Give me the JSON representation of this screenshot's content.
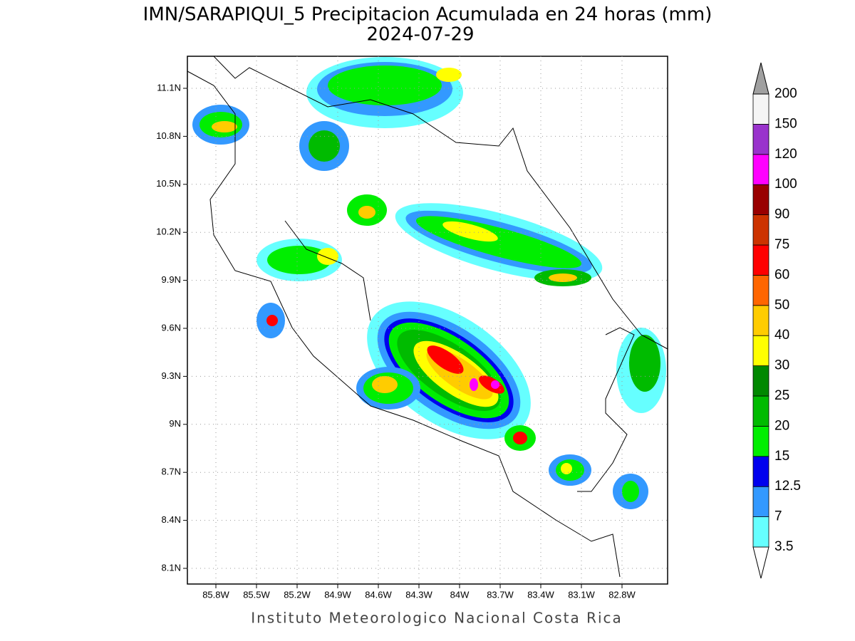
{
  "title": "IMN/SARAPIQUI_5 Precipitacion Acumulada en 24 horas (mm)",
  "subtitle": "2024-07-29",
  "map": {
    "lat_labels": [
      "11.1N",
      "10.8N",
      "10.5N",
      "10.2N",
      "9.9N",
      "9.6N",
      "9.3N",
      "9N",
      "8.7N",
      "8.4N",
      "8.1N"
    ],
    "lon_labels": [
      "85.8W",
      "85.5W",
      "85.2W",
      "84.9W",
      "84.6W",
      "84.3W",
      "84W",
      "83.7W",
      "83.4W",
      "83.1W",
      "82.8W"
    ]
  },
  "colorbar": {
    "levels": [
      3.5,
      7,
      12.5,
      15,
      20,
      25,
      30,
      40,
      50,
      60,
      75,
      90,
      100,
      120,
      150,
      200
    ],
    "colors": [
      "#ffffff",
      "#66ffff",
      "#3399ff",
      "#0000ee",
      "#00ee00",
      "#00bb00",
      "#008800",
      "#ffff00",
      "#ffcc00",
      "#ff6600",
      "#ff0000",
      "#cc3300",
      "#990000",
      "#ff00ff",
      "#9933cc",
      "#f5f5f5",
      "#a0a0a0"
    ]
  },
  "footer": "Instituto Meteorologico Nacional Costa Rica"
}
